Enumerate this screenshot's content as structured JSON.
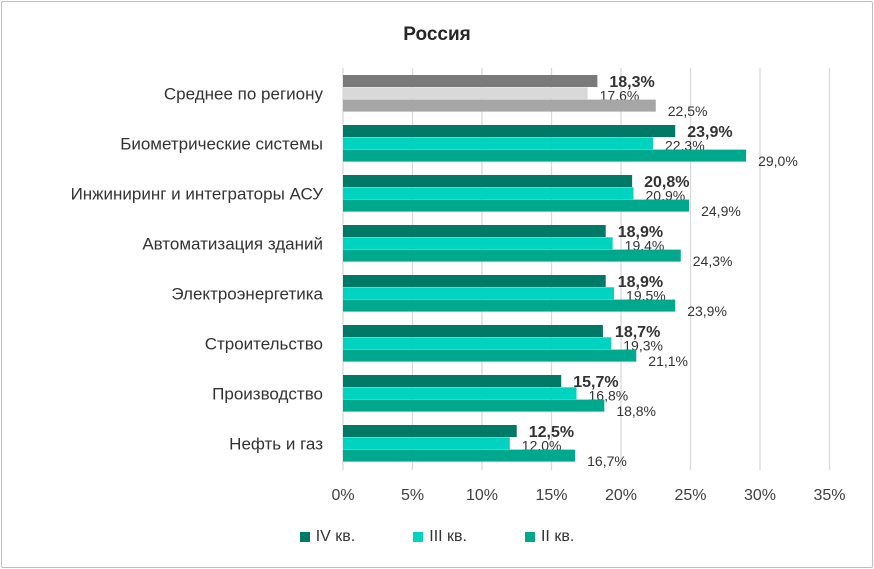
{
  "chart_data": {
    "type": "bar",
    "orientation": "horizontal",
    "title": "Россия",
    "categories": [
      "Среднее по региону",
      "Биометрические системы",
      "Инжиниринг и интеграторы АСУ",
      "Автоматизация зданий",
      "Электроэнергетика",
      "Строительство",
      "Производство",
      "Нефть и газ"
    ],
    "series": [
      {
        "name": "IV кв.",
        "values": [
          18.3,
          23.9,
          20.8,
          18.9,
          18.9,
          18.7,
          15.7,
          12.5
        ],
        "labels": [
          "18,3%",
          "23,9%",
          "20,8%",
          "18,9%",
          "18,9%",
          "18,7%",
          "15,7%",
          "12,5%"
        ]
      },
      {
        "name": "III кв.",
        "values": [
          17.6,
          22.3,
          20.9,
          19.4,
          19.5,
          19.3,
          16.8,
          12.0
        ],
        "labels": [
          "17,6%",
          "22,3%",
          "20,9%",
          "19,4%",
          "19,5%",
          "19,3%",
          "16,8%",
          "12,0%"
        ]
      },
      {
        "name": "II кв.",
        "values": [
          22.5,
          29.0,
          24.9,
          24.3,
          23.9,
          21.1,
          18.8,
          16.7
        ],
        "labels": [
          "22,5%",
          "29,0%",
          "24,9%",
          "24,3%",
          "23,9%",
          "21,1%",
          "18,8%",
          "16,7%"
        ]
      }
    ],
    "series_colors": [
      "#007a67",
      "#00d4c0",
      "#00a88e"
    ],
    "highlight_colors": [
      "#7a7a7a",
      "#d9d9d9",
      "#a6a6a6"
    ],
    "xlim": [
      0,
      35
    ],
    "ticks": [
      0,
      5,
      10,
      15,
      20,
      25,
      30,
      35
    ],
    "tick_labels": [
      "0%",
      "5%",
      "10%",
      "15%",
      "20%",
      "25%",
      "30%",
      "35%"
    ],
    "grid": true,
    "legend_position": "bottom"
  },
  "legend": [
    {
      "label": "IV кв.",
      "color": "#007a67"
    },
    {
      "label": "III кв.",
      "color": "#00d4c0"
    },
    {
      "label": "II кв.",
      "color": "#00a88e"
    }
  ]
}
